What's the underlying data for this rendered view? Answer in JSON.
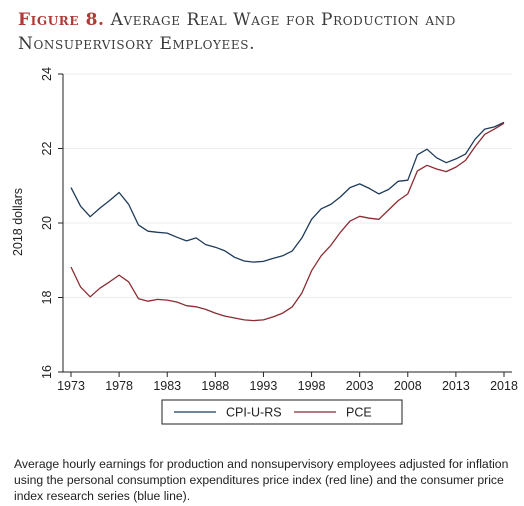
{
  "figure": {
    "label": "Figure 8.",
    "title": "Average Real Wage for Production and Nonsupervisory Employees.",
    "caption": "Average hourly earnings for production and nonsupervisory employees adjusted for inflation using the personal consumption expenditures price index (red line) and the consumer price index research series (blue line)."
  },
  "chart_data": {
    "type": "line",
    "title": "",
    "xlabel": "",
    "ylabel": "2018 dollars",
    "xlim": [
      1973,
      2018
    ],
    "ylim": [
      16,
      24
    ],
    "xticks": [
      1973,
      1978,
      1983,
      1988,
      1993,
      1998,
      2003,
      2008,
      2013,
      2018
    ],
    "yticks": [
      16,
      18,
      20,
      22,
      24
    ],
    "grid": true,
    "legend_position": "bottom",
    "x": [
      1973,
      1974,
      1975,
      1976,
      1977,
      1978,
      1979,
      1980,
      1981,
      1982,
      1983,
      1984,
      1985,
      1986,
      1987,
      1988,
      1989,
      1990,
      1991,
      1992,
      1993,
      1994,
      1995,
      1996,
      1997,
      1998,
      1999,
      2000,
      2001,
      2002,
      2003,
      2004,
      2005,
      2006,
      2007,
      2008,
      2009,
      2010,
      2011,
      2012,
      2013,
      2014,
      2015,
      2016,
      2017,
      2018
    ],
    "series": [
      {
        "name": "CPI-U-RS",
        "color": "#1f3b5a",
        "values": [
          20.95,
          20.45,
          20.17,
          20.4,
          20.6,
          20.82,
          20.5,
          19.95,
          19.78,
          19.75,
          19.73,
          19.62,
          19.52,
          19.6,
          19.42,
          19.35,
          19.25,
          19.08,
          18.98,
          18.95,
          18.97,
          19.05,
          19.12,
          19.25,
          19.6,
          20.1,
          20.38,
          20.5,
          20.7,
          20.95,
          21.05,
          20.93,
          20.78,
          20.9,
          21.12,
          21.15,
          21.83,
          21.98,
          21.75,
          21.62,
          21.72,
          21.85,
          22.25,
          22.52,
          22.58,
          22.7
        ]
      },
      {
        "name": "PCE",
        "color": "#8b2c33",
        "values": [
          18.82,
          18.28,
          18.02,
          18.25,
          18.42,
          18.6,
          18.42,
          17.97,
          17.9,
          17.95,
          17.93,
          17.88,
          17.78,
          17.75,
          17.68,
          17.58,
          17.5,
          17.45,
          17.4,
          17.38,
          17.4,
          17.48,
          17.58,
          17.75,
          18.12,
          18.72,
          19.12,
          19.4,
          19.75,
          20.05,
          20.18,
          20.13,
          20.1,
          20.35,
          20.6,
          20.78,
          21.4,
          21.55,
          21.45,
          21.38,
          21.5,
          21.68,
          22.05,
          22.38,
          22.52,
          22.68
        ]
      }
    ]
  }
}
